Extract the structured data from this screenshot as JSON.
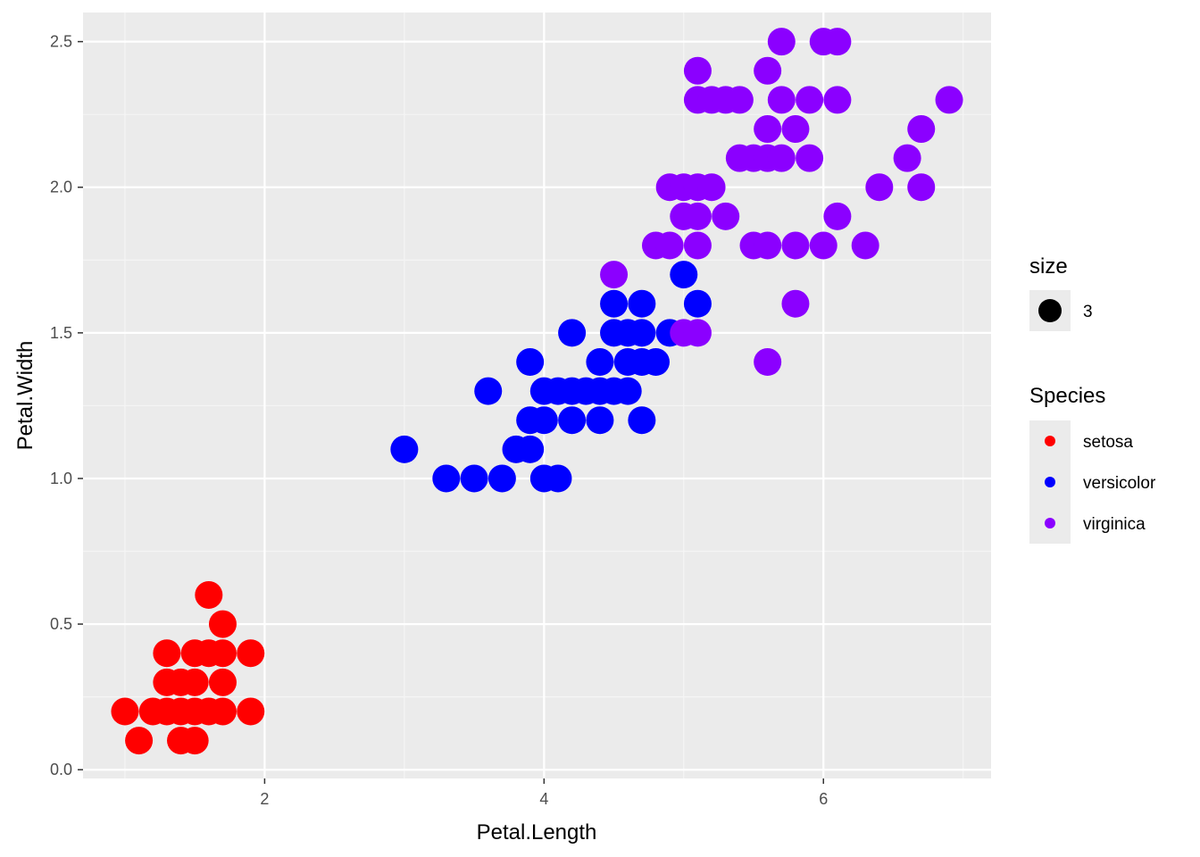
{
  "chart_data": {
    "type": "scatter",
    "xlabel": "Petal.Length",
    "ylabel": "Petal.Width",
    "xlim": [
      0.7,
      7.2
    ],
    "ylim": [
      -0.03,
      2.6
    ],
    "x_ticks": [
      2,
      4,
      6
    ],
    "x_tick_labels": [
      "2",
      "4",
      "6"
    ],
    "y_ticks": [
      0.0,
      0.5,
      1.0,
      1.5,
      2.0,
      2.5
    ],
    "y_tick_labels": [
      "0.0",
      "0.5",
      "1.0",
      "1.5",
      "2.0",
      "2.5"
    ],
    "grid": true,
    "legend_position": "right",
    "size_legend": {
      "title": "size",
      "value_label": "3"
    },
    "color_legend_title": "Species",
    "series": [
      {
        "name": "setosa",
        "color": "#ff0000",
        "points": [
          [
            1.0,
            0.2
          ],
          [
            1.1,
            0.1
          ],
          [
            1.2,
            0.2
          ],
          [
            1.3,
            0.2
          ],
          [
            1.3,
            0.3
          ],
          [
            1.3,
            0.4
          ],
          [
            1.4,
            0.2
          ],
          [
            1.4,
            0.1
          ],
          [
            1.4,
            0.3
          ],
          [
            1.5,
            0.2
          ],
          [
            1.5,
            0.1
          ],
          [
            1.5,
            0.4
          ],
          [
            1.5,
            0.3
          ],
          [
            1.6,
            0.2
          ],
          [
            1.6,
            0.4
          ],
          [
            1.6,
            0.6
          ],
          [
            1.7,
            0.2
          ],
          [
            1.7,
            0.3
          ],
          [
            1.7,
            0.4
          ],
          [
            1.7,
            0.5
          ],
          [
            1.9,
            0.2
          ],
          [
            1.9,
            0.4
          ]
        ]
      },
      {
        "name": "versicolor",
        "color": "#0000ff",
        "points": [
          [
            3.0,
            1.1
          ],
          [
            3.3,
            1.0
          ],
          [
            3.5,
            1.0
          ],
          [
            3.6,
            1.3
          ],
          [
            3.7,
            1.0
          ],
          [
            3.8,
            1.1
          ],
          [
            3.9,
            1.1
          ],
          [
            3.9,
            1.2
          ],
          [
            3.9,
            1.4
          ],
          [
            4.0,
            1.0
          ],
          [
            4.0,
            1.2
          ],
          [
            4.0,
            1.3
          ],
          [
            4.1,
            1.0
          ],
          [
            4.1,
            1.3
          ],
          [
            4.2,
            1.2
          ],
          [
            4.2,
            1.3
          ],
          [
            4.2,
            1.5
          ],
          [
            4.3,
            1.3
          ],
          [
            4.4,
            1.2
          ],
          [
            4.4,
            1.3
          ],
          [
            4.4,
            1.4
          ],
          [
            4.5,
            1.3
          ],
          [
            4.5,
            1.5
          ],
          [
            4.5,
            1.6
          ],
          [
            4.6,
            1.3
          ],
          [
            4.6,
            1.4
          ],
          [
            4.6,
            1.5
          ],
          [
            4.7,
            1.2
          ],
          [
            4.7,
            1.4
          ],
          [
            4.7,
            1.5
          ],
          [
            4.7,
            1.6
          ],
          [
            4.8,
            1.4
          ],
          [
            4.9,
            1.5
          ],
          [
            5.0,
            1.7
          ],
          [
            5.1,
            1.6
          ]
        ]
      },
      {
        "name": "virginica",
        "color": "#8b00ff",
        "points": [
          [
            4.5,
            1.7
          ],
          [
            4.8,
            1.8
          ],
          [
            4.9,
            1.8
          ],
          [
            4.9,
            2.0
          ],
          [
            5.0,
            1.5
          ],
          [
            5.0,
            1.9
          ],
          [
            5.0,
            2.0
          ],
          [
            5.1,
            1.5
          ],
          [
            5.1,
            1.8
          ],
          [
            5.1,
            1.9
          ],
          [
            5.1,
            2.0
          ],
          [
            5.1,
            2.3
          ],
          [
            5.1,
            2.4
          ],
          [
            5.2,
            2.0
          ],
          [
            5.2,
            2.3
          ],
          [
            5.3,
            1.9
          ],
          [
            5.3,
            2.3
          ],
          [
            5.4,
            2.1
          ],
          [
            5.4,
            2.3
          ],
          [
            5.5,
            1.8
          ],
          [
            5.5,
            2.1
          ],
          [
            5.6,
            1.4
          ],
          [
            5.6,
            1.8
          ],
          [
            5.6,
            2.1
          ],
          [
            5.6,
            2.2
          ],
          [
            5.6,
            2.4
          ],
          [
            5.7,
            2.1
          ],
          [
            5.7,
            2.3
          ],
          [
            5.7,
            2.5
          ],
          [
            5.8,
            1.6
          ],
          [
            5.8,
            1.8
          ],
          [
            5.8,
            2.2
          ],
          [
            5.9,
            2.1
          ],
          [
            5.9,
            2.3
          ],
          [
            6.0,
            1.8
          ],
          [
            6.0,
            2.5
          ],
          [
            6.1,
            1.9
          ],
          [
            6.1,
            2.3
          ],
          [
            6.1,
            2.5
          ],
          [
            6.3,
            1.8
          ],
          [
            6.4,
            2.0
          ],
          [
            6.6,
            2.1
          ],
          [
            6.7,
            2.0
          ],
          [
            6.7,
            2.2
          ],
          [
            6.9,
            2.3
          ]
        ]
      }
    ]
  }
}
